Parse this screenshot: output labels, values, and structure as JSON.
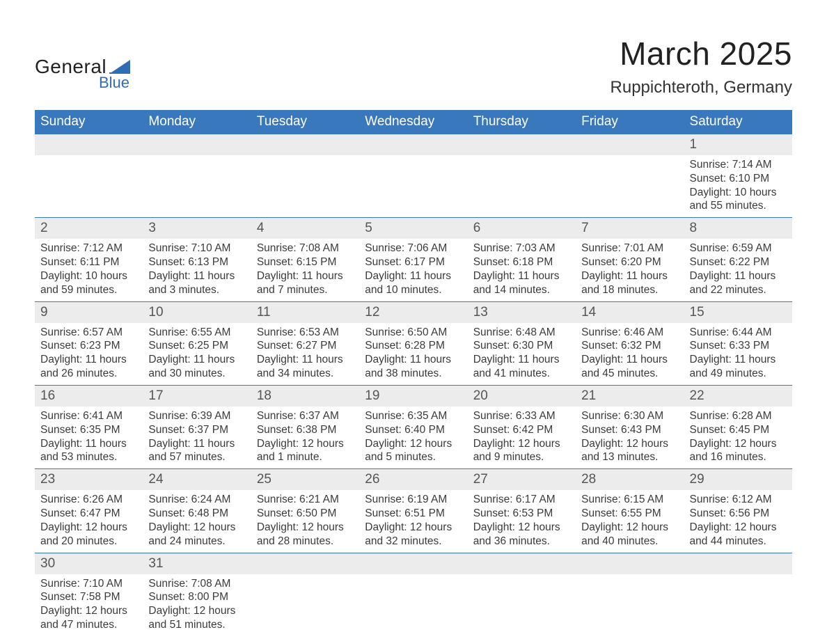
{
  "logo": {
    "text1": "General",
    "text2": "Blue",
    "shape_color": "#2f6eb5"
  },
  "title": "March 2025",
  "location": "Ruppichteroth, Germany",
  "colors": {
    "header_bg": "#3a78bd",
    "header_text": "#ffffff",
    "row_border": "#3a78bd",
    "daynum_bg": "#ececec",
    "text": "#333333"
  },
  "weekdays": [
    "Sunday",
    "Monday",
    "Tuesday",
    "Wednesday",
    "Thursday",
    "Friday",
    "Saturday"
  ],
  "weeks": [
    [
      null,
      null,
      null,
      null,
      null,
      null,
      {
        "n": "1",
        "sr": "Sunrise: 7:14 AM",
        "ss": "Sunset: 6:10 PM",
        "dl": "Daylight: 10 hours and 55 minutes."
      }
    ],
    [
      {
        "n": "2",
        "sr": "Sunrise: 7:12 AM",
        "ss": "Sunset: 6:11 PM",
        "dl": "Daylight: 10 hours and 59 minutes."
      },
      {
        "n": "3",
        "sr": "Sunrise: 7:10 AM",
        "ss": "Sunset: 6:13 PM",
        "dl": "Daylight: 11 hours and 3 minutes."
      },
      {
        "n": "4",
        "sr": "Sunrise: 7:08 AM",
        "ss": "Sunset: 6:15 PM",
        "dl": "Daylight: 11 hours and 7 minutes."
      },
      {
        "n": "5",
        "sr": "Sunrise: 7:06 AM",
        "ss": "Sunset: 6:17 PM",
        "dl": "Daylight: 11 hours and 10 minutes."
      },
      {
        "n": "6",
        "sr": "Sunrise: 7:03 AM",
        "ss": "Sunset: 6:18 PM",
        "dl": "Daylight: 11 hours and 14 minutes."
      },
      {
        "n": "7",
        "sr": "Sunrise: 7:01 AM",
        "ss": "Sunset: 6:20 PM",
        "dl": "Daylight: 11 hours and 18 minutes."
      },
      {
        "n": "8",
        "sr": "Sunrise: 6:59 AM",
        "ss": "Sunset: 6:22 PM",
        "dl": "Daylight: 11 hours and 22 minutes."
      }
    ],
    [
      {
        "n": "9",
        "sr": "Sunrise: 6:57 AM",
        "ss": "Sunset: 6:23 PM",
        "dl": "Daylight: 11 hours and 26 minutes."
      },
      {
        "n": "10",
        "sr": "Sunrise: 6:55 AM",
        "ss": "Sunset: 6:25 PM",
        "dl": "Daylight: 11 hours and 30 minutes."
      },
      {
        "n": "11",
        "sr": "Sunrise: 6:53 AM",
        "ss": "Sunset: 6:27 PM",
        "dl": "Daylight: 11 hours and 34 minutes."
      },
      {
        "n": "12",
        "sr": "Sunrise: 6:50 AM",
        "ss": "Sunset: 6:28 PM",
        "dl": "Daylight: 11 hours and 38 minutes."
      },
      {
        "n": "13",
        "sr": "Sunrise: 6:48 AM",
        "ss": "Sunset: 6:30 PM",
        "dl": "Daylight: 11 hours and 41 minutes."
      },
      {
        "n": "14",
        "sr": "Sunrise: 6:46 AM",
        "ss": "Sunset: 6:32 PM",
        "dl": "Daylight: 11 hours and 45 minutes."
      },
      {
        "n": "15",
        "sr": "Sunrise: 6:44 AM",
        "ss": "Sunset: 6:33 PM",
        "dl": "Daylight: 11 hours and 49 minutes."
      }
    ],
    [
      {
        "n": "16",
        "sr": "Sunrise: 6:41 AM",
        "ss": "Sunset: 6:35 PM",
        "dl": "Daylight: 11 hours and 53 minutes."
      },
      {
        "n": "17",
        "sr": "Sunrise: 6:39 AM",
        "ss": "Sunset: 6:37 PM",
        "dl": "Daylight: 11 hours and 57 minutes."
      },
      {
        "n": "18",
        "sr": "Sunrise: 6:37 AM",
        "ss": "Sunset: 6:38 PM",
        "dl": "Daylight: 12 hours and 1 minute."
      },
      {
        "n": "19",
        "sr": "Sunrise: 6:35 AM",
        "ss": "Sunset: 6:40 PM",
        "dl": "Daylight: 12 hours and 5 minutes."
      },
      {
        "n": "20",
        "sr": "Sunrise: 6:33 AM",
        "ss": "Sunset: 6:42 PM",
        "dl": "Daylight: 12 hours and 9 minutes."
      },
      {
        "n": "21",
        "sr": "Sunrise: 6:30 AM",
        "ss": "Sunset: 6:43 PM",
        "dl": "Daylight: 12 hours and 13 minutes."
      },
      {
        "n": "22",
        "sr": "Sunrise: 6:28 AM",
        "ss": "Sunset: 6:45 PM",
        "dl": "Daylight: 12 hours and 16 minutes."
      }
    ],
    [
      {
        "n": "23",
        "sr": "Sunrise: 6:26 AM",
        "ss": "Sunset: 6:47 PM",
        "dl": "Daylight: 12 hours and 20 minutes."
      },
      {
        "n": "24",
        "sr": "Sunrise: 6:24 AM",
        "ss": "Sunset: 6:48 PM",
        "dl": "Daylight: 12 hours and 24 minutes."
      },
      {
        "n": "25",
        "sr": "Sunrise: 6:21 AM",
        "ss": "Sunset: 6:50 PM",
        "dl": "Daylight: 12 hours and 28 minutes."
      },
      {
        "n": "26",
        "sr": "Sunrise: 6:19 AM",
        "ss": "Sunset: 6:51 PM",
        "dl": "Daylight: 12 hours and 32 minutes."
      },
      {
        "n": "27",
        "sr": "Sunrise: 6:17 AM",
        "ss": "Sunset: 6:53 PM",
        "dl": "Daylight: 12 hours and 36 minutes."
      },
      {
        "n": "28",
        "sr": "Sunrise: 6:15 AM",
        "ss": "Sunset: 6:55 PM",
        "dl": "Daylight: 12 hours and 40 minutes."
      },
      {
        "n": "29",
        "sr": "Sunrise: 6:12 AM",
        "ss": "Sunset: 6:56 PM",
        "dl": "Daylight: 12 hours and 44 minutes."
      }
    ],
    [
      {
        "n": "30",
        "sr": "Sunrise: 7:10 AM",
        "ss": "Sunset: 7:58 PM",
        "dl": "Daylight: 12 hours and 47 minutes."
      },
      {
        "n": "31",
        "sr": "Sunrise: 7:08 AM",
        "ss": "Sunset: 8:00 PM",
        "dl": "Daylight: 12 hours and 51 minutes."
      },
      null,
      null,
      null,
      null,
      null
    ]
  ]
}
